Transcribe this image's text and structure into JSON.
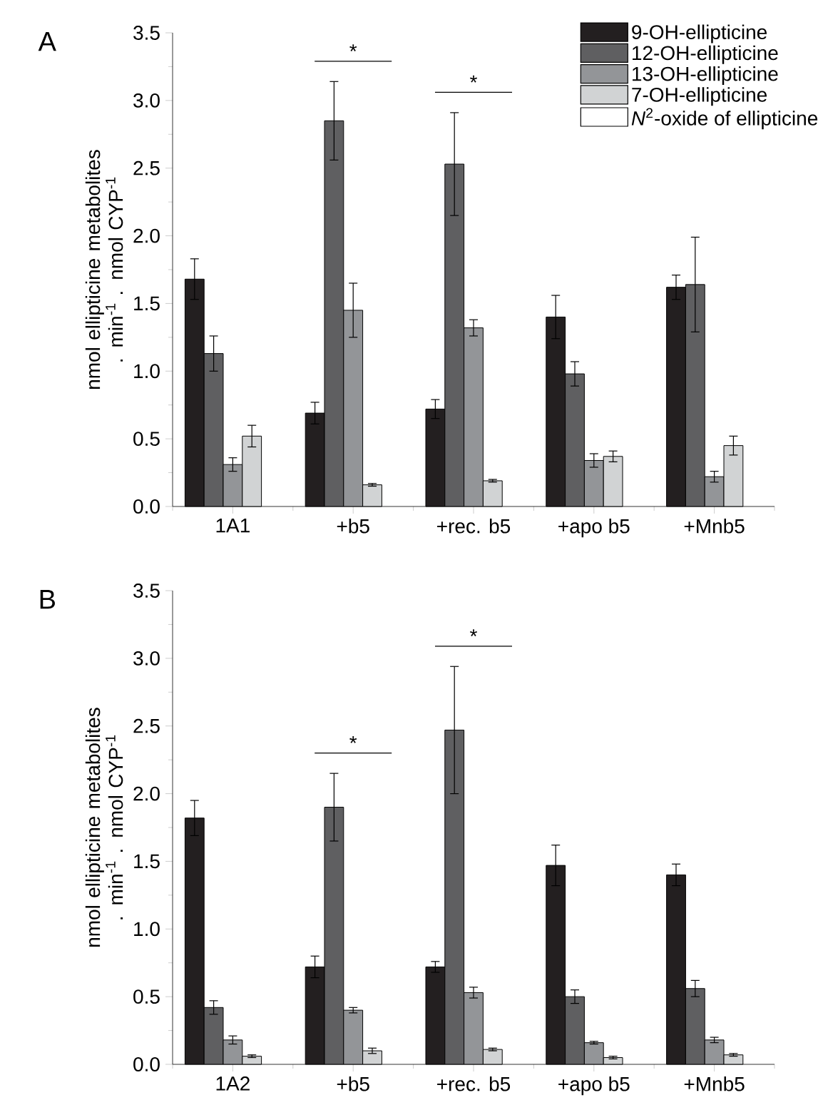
{
  "chart_data": [
    {
      "type": "bar",
      "title": "A",
      "categories": [
        "1A1",
        "+b5",
        "+rec. b5",
        "+apo b5",
        "+Mnb5"
      ],
      "ylabel": "nmol ellipticine metabolites . min$^{-1}$ . nmol CYP$^{-1}$",
      "ylim": [
        0,
        3.5
      ],
      "yticks": [
        {
          "value": 0,
          "label": "0.0"
        },
        0.5,
        {
          "value": 1,
          "label": "1.0"
        },
        1.5,
        {
          "value": 2,
          "label": "2.0"
        },
        2.5,
        {
          "value": 3,
          "label": "3.0"
        },
        3.5
      ],
      "legend": "top right",
      "series": [
        {
          "name": "9-OH-ellipticine",
          "color": "#231f20",
          "values": [
            1.68,
            0.69,
            0.72,
            1.4,
            1.62
          ],
          "errors": [
            0.15,
            0.08,
            0.07,
            0.16,
            0.09
          ]
        },
        {
          "name": "12-OH-ellipticine",
          "color": "#5f5f61",
          "values": [
            1.13,
            2.85,
            2.53,
            0.98,
            1.64
          ],
          "errors": [
            0.13,
            0.29,
            0.38,
            0.09,
            0.35
          ]
        },
        {
          "name": "13-OH-ellipticine",
          "color": "#939598",
          "values": [
            0.31,
            1.45,
            1.32,
            0.34,
            0.22
          ],
          "errors": [
            0.05,
            0.2,
            0.06,
            0.05,
            0.04
          ]
        },
        {
          "name": "7-OH-ellipticine",
          "color": "#d1d3d4",
          "values": [
            0.52,
            0.16,
            0.19,
            0.37,
            0.45
          ],
          "errors": [
            0.08,
            0.01,
            0.01,
            0.04,
            0.07
          ]
        },
        {
          "name": "*N*$^{2}$-oxide of ellipticine",
          "color": "#ffffff",
          "values": [
            null,
            null,
            null,
            null,
            null
          ]
        }
      ],
      "annotations": [
        "*",
        "*"
      ]
    },
    {
      "type": "bar",
      "title": "B",
      "categories": [
        "1A2",
        "+b5",
        "+rec. b5",
        "+apo b5",
        "+Mnb5"
      ],
      "ylabel": "nmol ellipticine metabolites . min$^{-1}$ . nmol CYP$^{-1}$",
      "ylim": [
        0,
        3.5
      ],
      "yticks": [
        {
          "value": 0,
          "label": "0.0"
        },
        0.5,
        {
          "value": 1,
          "label": "1.0"
        },
        1.5,
        {
          "value": 2,
          "label": "2.0"
        },
        2.5,
        {
          "value": 3,
          "label": "3.0"
        },
        3.5
      ],
      "series": [
        {
          "color": "#231f20",
          "values": [
            1.82,
            0.72,
            0.72,
            1.47,
            1.4
          ],
          "errors": [
            0.13,
            0.08,
            0.04,
            0.15,
            0.08
          ]
        },
        {
          "color": "#5f5f61",
          "values": [
            0.42,
            1.9,
            2.47,
            0.5,
            0.56
          ],
          "errors": [
            0.05,
            0.25,
            0.47,
            0.05,
            0.06
          ]
        },
        {
          "color": "#939598",
          "values": [
            0.18,
            0.4,
            0.53,
            0.16,
            0.18
          ],
          "errors": [
            0.03,
            0.02,
            0.04,
            0.01,
            0.02
          ]
        },
        {
          "color": "#d1d3d4",
          "values": [
            0.06,
            0.1,
            0.11,
            0.05,
            0.07
          ],
          "errors": [
            0.01,
            0.02,
            0.01,
            0.01,
            0.01
          ]
        },
        {
          "color": "#ffffff",
          "values": [
            null,
            null,
            null,
            null,
            null
          ]
        }
      ],
      "annotations": [
        "*",
        "*"
      ]
    }
  ]
}
